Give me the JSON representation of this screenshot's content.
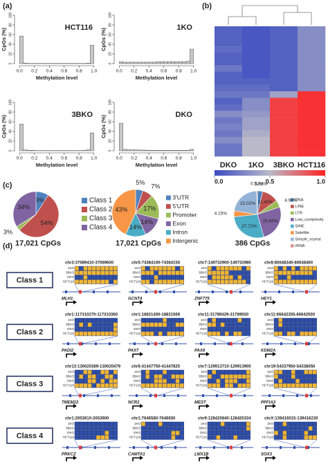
{
  "panels": {
    "a": "(a)",
    "b": "(b)",
    "c": "(c)",
    "d": "(d)"
  },
  "chart_data": [
    {
      "type": "histogram",
      "title": "HCT116",
      "xlabel": "Methylation level",
      "ylabel": "CpGs (%)",
      "color": "#c8c8c8",
      "bins": [
        0,
        0.05,
        0.1,
        0.15,
        0.2,
        0.25,
        0.3,
        0.35,
        0.4,
        0.45,
        0.5,
        0.55,
        0.6,
        0.65,
        0.7,
        0.75,
        0.8,
        0.85,
        0.9,
        0.95,
        1
      ],
      "values": [
        57,
        1,
        0.5,
        0.5,
        0.5,
        0.5,
        0.5,
        0.5,
        0.5,
        0.5,
        0.5,
        0.5,
        0.5,
        0.5,
        0.5,
        0.5,
        0.5,
        0.5,
        1,
        38
      ],
      "xlim": [
        -0.04,
        1.04
      ],
      "ylim": [
        0,
        100
      ],
      "xticks": [
        {
          "value": 0,
          "label": "0.0"
        },
        {
          "value": 0.2,
          "label": "0.2"
        },
        {
          "value": 0.4,
          "label": "0.4"
        },
        {
          "value": 0.6,
          "label": "0.6"
        },
        {
          "value": 0.8,
          "label": "0.8"
        },
        {
          "value": 1,
          "label": "1.0"
        }
      ],
      "yticks": [
        0,
        20,
        40,
        60,
        80,
        100
      ]
    },
    {
      "type": "histogram",
      "title": "1KO",
      "xlabel": "Methylation level",
      "ylabel": "CpGs (%)",
      "color": "#c8c8c8",
      "bins": [
        0,
        0.05,
        0.1,
        0.15,
        0.2,
        0.25,
        0.3,
        0.35,
        0.4,
        0.45,
        0.5,
        0.55,
        0.6,
        0.65,
        0.7,
        0.75,
        0.8,
        0.85,
        0.9,
        0.95,
        1
      ],
      "values": [
        4,
        3,
        3,
        3,
        3,
        3,
        3,
        3,
        3,
        3,
        4,
        4,
        4,
        4,
        4,
        4,
        4,
        4,
        5,
        30
      ],
      "xlim": [
        -0.04,
        1.04
      ],
      "ylim": [
        0,
        100
      ],
      "xticks": [
        {
          "value": 0,
          "label": "0.0"
        },
        {
          "value": 0.2,
          "label": "0.2"
        },
        {
          "value": 0.4,
          "label": "0.4"
        },
        {
          "value": 0.6,
          "label": "0.6"
        },
        {
          "value": 0.8,
          "label": "0.8"
        },
        {
          "value": 1,
          "label": "1.0"
        }
      ],
      "yticks": [
        0,
        20,
        40,
        60,
        80,
        100
      ]
    },
    {
      "type": "histogram",
      "title": "3BKO",
      "xlabel": "Methylation level",
      "ylabel": "CpGs (%)",
      "color": "#c8c8c8",
      "bins": [
        0,
        0.05,
        0.1,
        0.15,
        0.2,
        0.25,
        0.3,
        0.35,
        0.4,
        0.45,
        0.5,
        0.55,
        0.6,
        0.65,
        0.7,
        0.75,
        0.8,
        0.85,
        0.9,
        0.95,
        1
      ],
      "values": [
        55,
        2,
        1,
        1,
        0.5,
        0.5,
        0.5,
        0.5,
        0.5,
        0.5,
        0.5,
        0.5,
        0.5,
        0.5,
        0.5,
        0.5,
        0.5,
        1,
        2,
        37
      ],
      "xlim": [
        -0.04,
        1.04
      ],
      "ylim": [
        0,
        100
      ],
      "xticks": [
        {
          "value": 0,
          "label": "0.0"
        },
        {
          "value": 0.2,
          "label": "0.2"
        },
        {
          "value": 0.4,
          "label": "0.4"
        },
        {
          "value": 0.6,
          "label": "0.6"
        },
        {
          "value": 0.8,
          "label": "0.8"
        },
        {
          "value": 1,
          "label": "1.0"
        }
      ],
      "yticks": [
        0,
        20,
        40,
        60,
        80,
        100
      ]
    },
    {
      "type": "histogram",
      "title": "DKO",
      "xlabel": "Methylation level",
      "ylabel": "CpGs (%)",
      "color": "#c8c8c8",
      "bins": [
        0,
        0.05,
        0.1,
        0.15,
        0.2,
        0.25,
        0.3,
        0.35,
        0.4,
        0.45,
        0.5,
        0.55,
        0.6,
        0.65,
        0.7,
        0.75,
        0.8,
        0.85,
        0.9,
        0.95,
        1
      ],
      "values": [
        57,
        3,
        2,
        2,
        2,
        1.5,
        1.5,
        1,
        1,
        1,
        1,
        1,
        1,
        1,
        1,
        1,
        1,
        1,
        1,
        3
      ],
      "xlim": [
        -0.04,
        1.04
      ],
      "ylim": [
        0,
        100
      ],
      "xticks": [
        {
          "value": 0,
          "label": "0.0"
        },
        {
          "value": 0.2,
          "label": "0.2"
        },
        {
          "value": 0.4,
          "label": "0.4"
        },
        {
          "value": 0.6,
          "label": "0.6"
        },
        {
          "value": 0.8,
          "label": "0.8"
        },
        {
          "value": 1,
          "label": "1.0"
        }
      ],
      "yticks": [
        0,
        20,
        40,
        60,
        80,
        100
      ]
    },
    {
      "type": "heatmap",
      "columns": [
        "DKO",
        "1KO",
        "3BKO",
        "HCT116"
      ],
      "values": [
        [
          0.1,
          0.1,
          0.1,
          0.15,
          0.1,
          0.1,
          0.2,
          0.1,
          0.1,
          0.15,
          0.2,
          0.1,
          0.15,
          0.3,
          0.2,
          0.25,
          0.2,
          0.3,
          0.2,
          0.2
        ],
        [
          0.05,
          0.05,
          0.05,
          0.05,
          0.05,
          0.05,
          0.05,
          0.05,
          0.1,
          0.15,
          0.2,
          0.3,
          0.3,
          0.35,
          0.4,
          0.4,
          0.45,
          0.5,
          0.5,
          0.5
        ],
        [
          0.1,
          0.1,
          0.1,
          0.1,
          0.1,
          0.1,
          0.1,
          0.1,
          0.1,
          0.1,
          0.4,
          0.9,
          0.9,
          0.9,
          0.9,
          0.9,
          0.9,
          0.9,
          0.9,
          0.9
        ],
        [
          0.3,
          0.3,
          0.3,
          0.3,
          0.3,
          0.3,
          0.3,
          0.3,
          0.3,
          0.3,
          0.95,
          0.95,
          0.95,
          0.95,
          0.95,
          0.95,
          0.95,
          0.95,
          0.95,
          0.95
        ]
      ],
      "zlim": [
        0,
        1
      ],
      "colors": [
        "#3b4cc0",
        "#b9b9c9",
        "#ff2323"
      ],
      "colorbar_ticks": [
        {
          "value": 0,
          "label": "0.0"
        },
        {
          "value": 0.5,
          "label": "0.5"
        },
        {
          "value": 1,
          "label": "1.0"
        }
      ]
    },
    {
      "type": "pie",
      "caption": "17,021 CpGs",
      "categories": [
        "Class 1",
        "Class 2",
        "Class 3",
        "Class 4"
      ],
      "values": [
        9,
        54,
        3,
        34
      ],
      "value_labels": [
        "9%",
        "54%",
        "3%",
        "34%"
      ],
      "colors": [
        "#4f81bd",
        "#c0504d",
        "#9bbb59",
        "#8064a2"
      ]
    },
    {
      "type": "pie",
      "caption": "17,021 CpGs",
      "categories": [
        "3'UTR",
        "5'UTR",
        "Promoter",
        "Exon",
        "Intron",
        "Intergenic"
      ],
      "values": [
        5,
        7,
        17,
        14,
        14,
        43
      ],
      "value_labels": [
        "5%",
        "7%",
        "17%",
        "14%",
        "14%",
        "43%"
      ],
      "colors": [
        "#4f81bd",
        "#c0504d",
        "#9bbb59",
        "#8064a2",
        "#4bacc6",
        "#f79646"
      ]
    },
    {
      "type": "pie",
      "caption": "386 CpGs",
      "categories": [
        "DNA",
        "LINE",
        "LTR",
        "Low_complexity",
        "SINE",
        "Satellite",
        "Simple_repeat",
        "rRNA"
      ],
      "values": [
        3.63,
        11.4,
        4.92,
        25.65,
        27.72,
        4.15,
        22.02,
        0.52
      ],
      "value_labels": [
        "3.63%",
        "11.40%",
        "4.92%",
        "25.65%",
        "27.72%",
        "4.15%",
        "22.02%",
        "0.52%"
      ],
      "colors": [
        "#4f81bd",
        "#c0504d",
        "#9bbb59",
        "#8064a2",
        "#4bacc6",
        "#f79646",
        "#95b3d7",
        "#d99694"
      ]
    }
  ],
  "loci": {
    "row_labels": [
      "1KO",
      "3BKO",
      "DKO",
      "HCT116"
    ],
    "classes": [
      {
        "label": "Class 1",
        "genes": [
          {
            "coord": "chr3:37089410-37089600",
            "name": "MLH1"
          },
          {
            "coord": "chr5:74384100-74384150",
            "name": "GCNT4"
          },
          {
            "coord": "chr7:149732900-149732980",
            "name": "ZNF775"
          },
          {
            "coord": "chr8:80048340-80048460",
            "name": "HEY1"
          }
        ]
      },
      {
        "label": "Class 2",
        "genes": [
          {
            "coord": "chr1:117310270-117310360",
            "name": "PADI2"
          },
          {
            "coord": "chr1:18831400-18831569",
            "name": "PAX7"
          },
          {
            "coord": "chr11:31789429-31789550",
            "name": "PAX6"
          },
          {
            "coord": "chr11:66642355-66642500",
            "name": "KDM2A"
          }
        ]
      },
      {
        "label": "Class 3",
        "genes": [
          {
            "coord": "chr13:130020389-130020479",
            "name": "TMEM22"
          },
          {
            "coord": "chr6:41447750-41447825",
            "name": "NCR2"
          },
          {
            "coord": "chr7:129913710-129913900",
            "name": "MEST"
          },
          {
            "coord": "chr19:54337950-54338050",
            "name": "PPFIA3"
          }
        ]
      },
      {
        "label": "Class 4",
        "genes": [
          {
            "coord": "chr1:2053610-2053900",
            "name": "PRKCZ"
          },
          {
            "coord": "chr1:7646580-7646650",
            "name": "CAMTA1"
          },
          {
            "coord": "chr9:128420840-128420334",
            "name": "LMX1B"
          },
          {
            "coord": "chrX:139416015-139416230",
            "name": "SOX3"
          }
        ]
      }
    ]
  }
}
